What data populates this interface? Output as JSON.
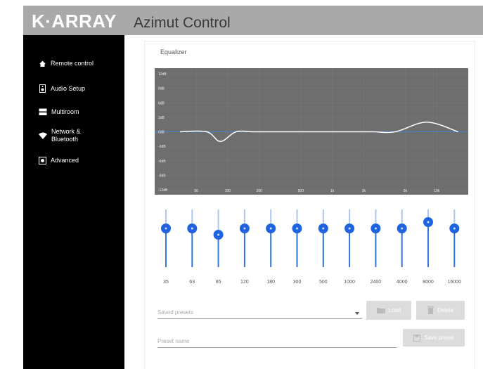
{
  "header": {
    "logo": "K·ARRAY",
    "title": "Azimut Control"
  },
  "sidebar": {
    "items": [
      "Remote control",
      "Audio Setup",
      "Multiroom",
      "Network & Bluetooth",
      "Advanced"
    ]
  },
  "chart_data": {
    "type": "line",
    "title": "Equalizer",
    "x": [
      35,
      63,
      85,
      120,
      180,
      300,
      500,
      1000,
      2400,
      4000,
      8000,
      16000
    ],
    "values": [
      0,
      0,
      -2,
      0,
      0,
      0,
      0,
      0,
      0,
      0,
      2,
      0
    ],
    "color": "#ffffff",
    "log_x": true,
    "xlim": [
      20,
      20000
    ],
    "xticks": [
      50,
      100,
      200,
      500,
      {
        "value": 1000,
        "label": "1k"
      },
      {
        "value": 2000,
        "label": "2k"
      },
      {
        "value": 5000,
        "label": "5k"
      },
      {
        "value": 10000,
        "label": "10k"
      }
    ],
    "ylim": [
      -12,
      12
    ],
    "yticks": [
      {
        "value": 12,
        "label": "12dB"
      },
      {
        "value": 9,
        "label": "9dB"
      },
      {
        "value": 6,
        "label": "6dB"
      },
      {
        "value": 3,
        "label": "3dB"
      },
      {
        "value": 0,
        "label": "0dB"
      },
      {
        "value": -3,
        "label": "-3dB"
      },
      {
        "value": -6,
        "label": "-6dB"
      },
      {
        "value": -9,
        "label": "-9dB"
      },
      {
        "value": -12,
        "label": "-12dB"
      }
    ]
  },
  "presets": {
    "select_placeholder": "Saved presets",
    "load": "Load",
    "delete": "Delete",
    "name_placeholder": "Preset name",
    "save": "Save preset"
  }
}
